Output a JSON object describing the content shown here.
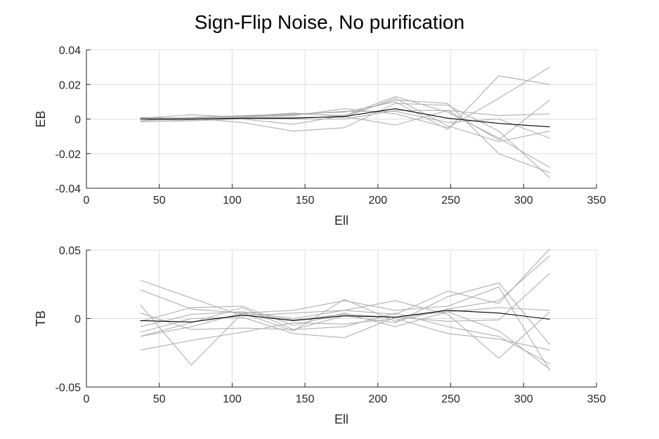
{
  "figure": {
    "title": "Sign-Flip Noise, No purification",
    "colors": {
      "realization": "#b0b0b0",
      "mean": "#000000"
    }
  },
  "chart_data": [
    {
      "id": "eb",
      "type": "line",
      "title": "",
      "xlabel": "Ell",
      "ylabel": "EB",
      "xlim": [
        0,
        350
      ],
      "ylim": [
        -0.04,
        0.04
      ],
      "xticks": [
        0,
        50,
        100,
        150,
        200,
        250,
        300,
        350
      ],
      "yticks": [
        -0.04,
        -0.02,
        0,
        0.02,
        0.04
      ],
      "xtick_labels": [
        "0",
        "50",
        "100",
        "150",
        "200",
        "250",
        "300",
        "350"
      ],
      "ytick_labels": [
        "-0.04",
        "-0.02",
        "0",
        "0.02",
        "0.04"
      ],
      "grid": true,
      "x": [
        37,
        72,
        107,
        142,
        177,
        212,
        248,
        283,
        318
      ],
      "series": [
        {
          "values": [
            0.0005,
            0.0025,
            0.001,
            0.003,
            0.002,
            0.011,
            0.009,
            -0.02,
            -0.031
          ],
          "role": "realization"
        },
        {
          "values": [
            -0.001,
            0.001,
            0.002,
            0.003,
            0.004,
            0.01,
            -0.006,
            0.025,
            0.02
          ],
          "role": "realization"
        },
        {
          "values": [
            0.0,
            -0.001,
            0.0,
            -0.003,
            0.002,
            0.013,
            0.004,
            -0.011,
            -0.028
          ],
          "role": "realization"
        },
        {
          "values": [
            0.0005,
            0.0005,
            -0.002,
            -0.007,
            -0.005,
            0.009,
            0.008,
            -0.007,
            -0.034
          ],
          "role": "realization"
        },
        {
          "values": [
            -0.001,
            0.0,
            0.001,
            0.002,
            0.006,
            0.003,
            -0.005,
            0.012,
            0.03
          ],
          "role": "realization"
        },
        {
          "values": [
            -0.0015,
            -0.001,
            0.0005,
            0.001,
            0.001,
            0.012,
            -0.004,
            -0.013,
            -0.007
          ],
          "role": "realization"
        },
        {
          "values": [
            0.0,
            0.001,
            0.0,
            0.0,
            0.0,
            0.005,
            0.005,
            0.002,
            0.003
          ],
          "role": "realization"
        },
        {
          "values": [
            0.001,
            0.0005,
            0.0015,
            0.0035,
            0.0015,
            -0.0035,
            0.005,
            -0.012,
            0.011
          ],
          "role": "realization"
        },
        {
          "values": [
            0.0005,
            -0.0005,
            0.0015,
            0.0025,
            0.0045,
            0.0045,
            -0.002,
            0.0,
            -0.011
          ],
          "role": "realization"
        },
        {
          "values": [
            0.0,
            0.0,
            0.0005,
            0.0005,
            0.0015,
            0.006,
            0.0005,
            -0.0025,
            -0.0045
          ],
          "role": "mean"
        }
      ]
    },
    {
      "id": "tb",
      "type": "line",
      "title": "",
      "xlabel": "Ell",
      "ylabel": "TB",
      "xlim": [
        0,
        350
      ],
      "ylim": [
        -0.05,
        0.05
      ],
      "xticks": [
        0,
        50,
        100,
        150,
        200,
        250,
        300,
        350
      ],
      "yticks": [
        -0.05,
        0,
        0.05
      ],
      "xtick_labels": [
        "0",
        "50",
        "100",
        "150",
        "200",
        "250",
        "300",
        "350"
      ],
      "ytick_labels": [
        "-0.05",
        "0",
        "0.05"
      ],
      "grid": true,
      "x": [
        37,
        72,
        107,
        142,
        177,
        212,
        248,
        283,
        318
      ],
      "series": [
        {
          "values": [
            0.028,
            0.015,
            0.002,
            0.004,
            0.006,
            0.003,
            0.02,
            0.011,
            0.051
          ],
          "role": "realization"
        },
        {
          "values": [
            0.021,
            0.007,
            0.004,
            0.006,
            0.013,
            0.006,
            0.009,
            0.023,
            -0.038
          ],
          "role": "realization"
        },
        {
          "values": [
            0.01,
            -0.034,
            0.004,
            -0.009,
            0.014,
            -0.002,
            0.007,
            0.013,
            0.046
          ],
          "role": "realization"
        },
        {
          "values": [
            -0.023,
            -0.016,
            -0.01,
            -0.003,
            -0.004,
            0.0,
            -0.011,
            -0.015,
            -0.023
          ],
          "role": "realization"
        },
        {
          "values": [
            -0.013,
            -0.003,
            0.008,
            -0.008,
            0.002,
            -0.003,
            0.016,
            0.026,
            -0.019
          ],
          "role": "realization"
        },
        {
          "values": [
            -0.006,
            0.003,
            0.005,
            0.0,
            0.006,
            0.013,
            0.003,
            -0.029,
            0.005
          ],
          "role": "realization"
        },
        {
          "values": [
            -0.002,
            0.008,
            0.009,
            -0.005,
            0.004,
            -0.006,
            0.005,
            -0.009,
            -0.037
          ],
          "role": "realization"
        },
        {
          "values": [
            -0.01,
            0.0,
            0.001,
            -0.011,
            -0.014,
            0.001,
            -0.002,
            -0.001,
            0.033
          ],
          "role": "realization"
        },
        {
          "values": [
            0.004,
            -0.008,
            -0.007,
            -0.008,
            -0.006,
            0.004,
            -0.006,
            -0.013,
            -0.033
          ],
          "role": "realization"
        },
        {
          "values": [
            -0.013,
            -0.006,
            0.004,
            -0.001,
            0.003,
            0.001,
            0.005,
            0.008,
            0.006
          ],
          "role": "realization"
        },
        {
          "values": [
            -0.0015,
            -0.0025,
            0.0025,
            -0.0015,
            0.002,
            0.001,
            0.006,
            0.004,
            -0.0005
          ],
          "role": "mean"
        }
      ]
    }
  ]
}
